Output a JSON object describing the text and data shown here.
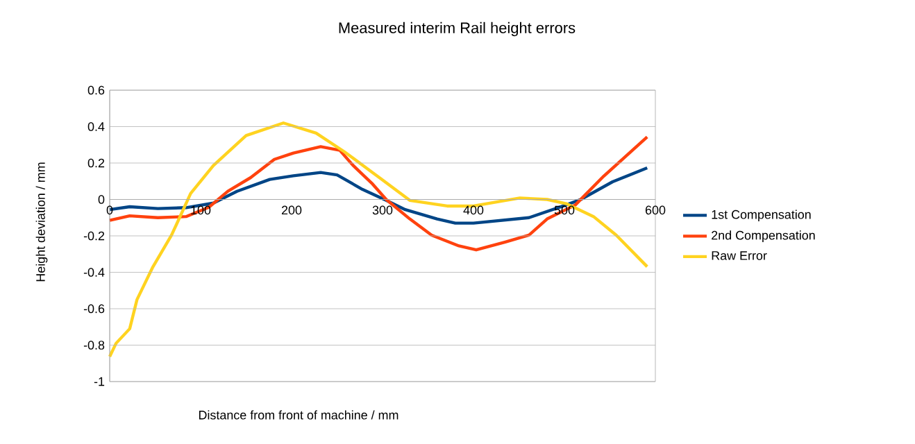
{
  "chart_data": {
    "type": "line",
    "title": "Measured interim Rail height errors",
    "xlabel": "Distance from front of machine / mm",
    "ylabel": "Height deviation / mm",
    "xlim": [
      0,
      600
    ],
    "xticks": [
      0,
      100,
      200,
      300,
      400,
      500,
      600
    ],
    "ylim": [
      -1,
      0.6
    ],
    "yticks": [
      -1,
      -0.8,
      -0.6,
      -0.4,
      -0.2,
      0,
      0.2,
      0.4,
      0.6
    ],
    "grid": "y",
    "legend": "right",
    "marker": "none",
    "line_style": "solid",
    "series": [
      {
        "name": "1st Compensation",
        "color": "#004586",
        "x": [
          0,
          22,
          53,
          84,
          114,
          140,
          176,
          202,
          232,
          250,
          278,
          304,
          325,
          360,
          380,
          400,
          461,
          502,
          518,
          553,
          591
        ],
        "values": [
          -0.056,
          -0.04,
          -0.05,
          -0.045,
          -0.02,
          0.045,
          0.11,
          0.13,
          0.148,
          0.135,
          0.055,
          -0.005,
          -0.056,
          -0.107,
          -0.13,
          -0.13,
          -0.1,
          -0.03,
          0,
          0.097,
          0.173
        ]
      },
      {
        "name": "2nd Compensation",
        "color": "#ff420e",
        "x": [
          0,
          22,
          53,
          84,
          109,
          130,
          155,
          181,
          202,
          232,
          253,
          268,
          289,
          304,
          330,
          354,
          384,
          403,
          435,
          461,
          481,
          512,
          542,
          591
        ],
        "values": [
          -0.115,
          -0.09,
          -0.1,
          -0.094,
          -0.043,
          0.045,
          0.12,
          0.22,
          0.255,
          0.29,
          0.27,
          0.185,
          0.085,
          0,
          -0.107,
          -0.196,
          -0.255,
          -0.277,
          -0.234,
          -0.196,
          -0.107,
          -0.03,
          0.122,
          0.343
        ]
      },
      {
        "name": "Raw Error",
        "color": "#ffd320",
        "x": [
          0,
          7,
          22,
          30,
          47,
          68,
          89,
          114,
          150,
          191,
          227,
          258,
          289,
          330,
          371,
          400,
          451,
          481,
          502,
          532,
          557,
          591
        ],
        "values": [
          -0.863,
          -0.79,
          -0.71,
          -0.55,
          -0.375,
          -0.196,
          0.033,
          0.186,
          0.351,
          0.42,
          0.364,
          0.262,
          0.148,
          -0.005,
          -0.036,
          -0.036,
          0.008,
          0,
          -0.023,
          -0.094,
          -0.196,
          -0.369
        ]
      }
    ]
  }
}
